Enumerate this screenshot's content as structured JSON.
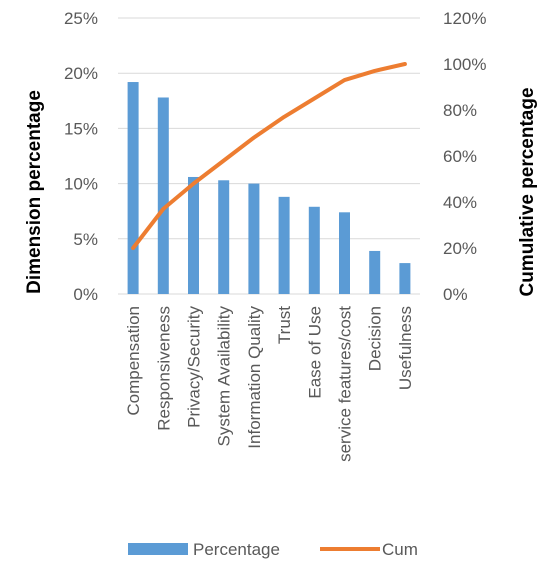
{
  "chart_data": {
    "type": "bar",
    "categories": [
      "Compensation",
      "Responsiveness",
      "Privacy/Security",
      "System Availability",
      "Information Quality",
      "Trust",
      "Ease of Use",
      "service features/cost",
      "Decision",
      "Usefulness"
    ],
    "series": [
      {
        "name": "Percentage",
        "type": "bar",
        "axis": "left",
        "color": "#5B9BD5",
        "values": [
          19.2,
          17.8,
          10.6,
          10.3,
          10.0,
          8.8,
          7.9,
          7.4,
          3.9,
          2.8
        ]
      },
      {
        "name": "Cum",
        "type": "line",
        "axis": "right",
        "color": "#ED7D31",
        "values": [
          20,
          37,
          48,
          58,
          68,
          77,
          85,
          93,
          97,
          100
        ]
      }
    ],
    "ylabel": "Dimension percentage",
    "y2label": "Cumulative percentage",
    "ylim": [
      0,
      25
    ],
    "y2lim": [
      0,
      120
    ],
    "yticks": [
      "0%",
      "5%",
      "10%",
      "15%",
      "20%",
      "25%"
    ],
    "y2ticks": [
      "0%",
      "20%",
      "40%",
      "60%",
      "80%",
      "100%",
      "120%"
    ],
    "grid": true,
    "legend": "bottom"
  }
}
